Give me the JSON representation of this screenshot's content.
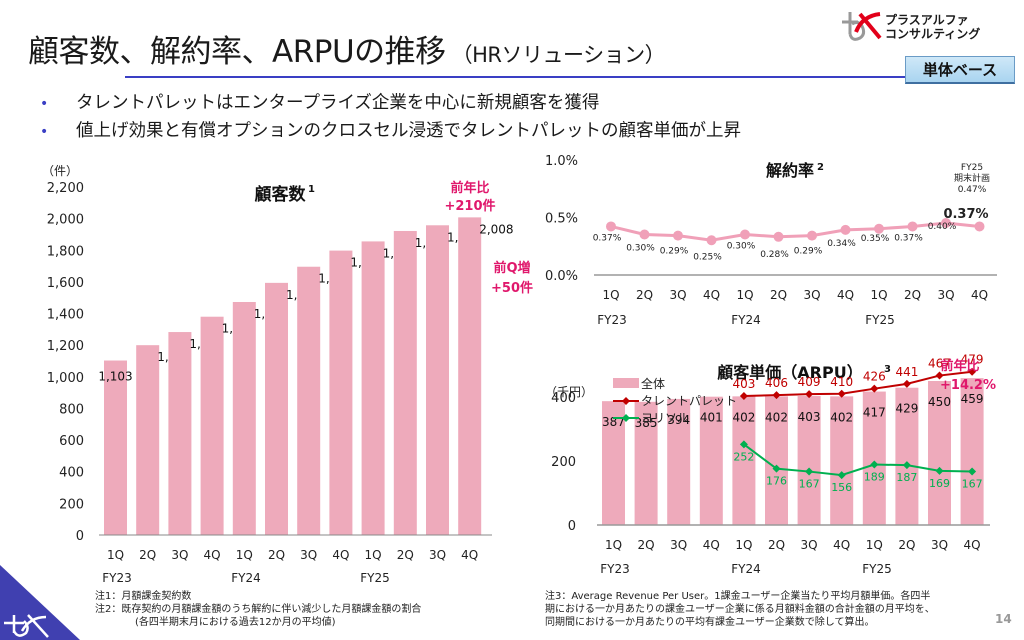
{
  "header": {
    "title": "顧客数、解約率、ARPUの推移",
    "subtitle": "（HRソリューション）",
    "logo_line1": "プラスアルファ",
    "logo_line2": "コンサルティング",
    "badge": "単体ベース"
  },
  "bullets": [
    "タレントパレットはエンタープライズ企業を中心に新規顧客を獲得",
    "値上げ効果と有償オプションのクロスセル浸透でタレントパレットの顧客単価が上昇"
  ],
  "colors": {
    "bar_pink": "#eeaabb",
    "churn_line": "#f0a0b8",
    "talent_palette": "#c00000",
    "yorisol": "#00b050",
    "accent_magenta": "#e0186c",
    "rule_blue": "#3a3fc4"
  },
  "chart_data": [
    {
      "id": "customers",
      "type": "bar",
      "title": "顧客数",
      "title_sup": "1",
      "unit_label": "（件）",
      "categories": [
        "1Q",
        "2Q",
        "3Q",
        "4Q",
        "1Q",
        "2Q",
        "3Q",
        "4Q",
        "1Q",
        "2Q",
        "3Q",
        "4Q"
      ],
      "fiscal_years": [
        "FY23",
        "FY24",
        "FY25"
      ],
      "values": [
        1103,
        1200,
        1283,
        1380,
        1473,
        1594,
        1696,
        1798,
        1856,
        1922,
        1958,
        2008
      ],
      "value_labels": [
        "1,103",
        "1,200",
        "1,283",
        "1,380",
        "1,473",
        "1,594",
        "1,696",
        "1,798",
        "1,856",
        "1,922",
        "1,958",
        "2,008"
      ],
      "ylim": [
        0,
        2200
      ],
      "yticks": [
        0,
        200,
        400,
        600,
        800,
        1000,
        1200,
        1400,
        1600,
        1800,
        2000,
        2200
      ],
      "ytick_labels": [
        "0",
        "200",
        "400",
        "600",
        "800",
        "1,000",
        "1,200",
        "1,400",
        "1,600",
        "1,800",
        "2,000",
        "2,200"
      ],
      "annotations": [
        {
          "text_line1": "前年比",
          "text_line2": "+210件"
        },
        {
          "text_line1": "前Q増",
          "text_line2": "+50件"
        }
      ],
      "grid": false
    },
    {
      "id": "churn",
      "type": "line",
      "title": "解約率",
      "title_sup": "2",
      "categories": [
        "1Q",
        "2Q",
        "3Q",
        "4Q",
        "1Q",
        "2Q",
        "3Q",
        "4Q",
        "1Q",
        "2Q",
        "3Q",
        "4Q"
      ],
      "fiscal_years": [
        "FY23",
        "FY24",
        "FY25"
      ],
      "values": [
        0.37,
        0.3,
        0.29,
        0.25,
        0.3,
        0.28,
        0.29,
        0.34,
        0.35,
        0.37,
        0.4,
        0.37
      ],
      "value_labels": [
        "0.37%",
        "0.30%",
        "0.29%",
        "0.25%",
        "0.30%",
        "0.28%",
        "0.29%",
        "0.34%",
        "0.35%",
        "0.37%",
        "0.40%",
        "0.37%"
      ],
      "ylim": [
        0,
        1.0
      ],
      "yticks": [
        0,
        0.5,
        1.0
      ],
      "ytick_labels": [
        "0.0%",
        "0.5%",
        "1.0%"
      ],
      "plan": {
        "line1": "FY25",
        "line2": "期末計画",
        "line3": "0.47%"
      },
      "latest_label": "0.37%",
      "grid": false
    },
    {
      "id": "arpu",
      "type": "bar",
      "title": "顧客単価（ARPU）",
      "title_sup": "3",
      "unit_label": "（千円）",
      "categories": [
        "1Q",
        "2Q",
        "3Q",
        "4Q",
        "1Q",
        "2Q",
        "3Q",
        "4Q",
        "1Q",
        "2Q",
        "3Q",
        "4Q"
      ],
      "fiscal_years": [
        "FY23",
        "FY24",
        "FY25"
      ],
      "ylim": [
        0,
        500
      ],
      "yticks": [
        0,
        200,
        400
      ],
      "ytick_labels": [
        "0",
        "200",
        "400"
      ],
      "series": [
        {
          "name": "全体",
          "kind": "bar",
          "values": [
            387,
            385,
            394,
            401,
            402,
            402,
            403,
            402,
            417,
            429,
            450,
            459
          ]
        },
        {
          "name": "タレントパレット",
          "kind": "line",
          "values": [
            null,
            null,
            null,
            null,
            403,
            406,
            409,
            410,
            426,
            441,
            467,
            479
          ]
        },
        {
          "name": "ヨリソル",
          "kind": "line",
          "values": [
            null,
            null,
            null,
            null,
            252,
            176,
            167,
            156,
            189,
            187,
            169,
            167
          ]
        }
      ],
      "annotation": {
        "text_line1": "前年比",
        "text_line2": "+14.2%"
      },
      "legend": "top-left",
      "grid": false
    }
  ],
  "notes": {
    "left": [
      "注1：月額課金契約数",
      "注2：既存契約の月額課金額のうち解約に伴い減少した月額課金額の割合",
      "　　　　(各四半期末月における過去12か月の平均値)"
    ],
    "right": [
      "注3：Average Revenue Per User。1課金ユーザー企業当たり平均月額単価。各四半",
      "期における一か月あたりの課金ユーザー企業に係る月額料金額の合計金額の月平均を、",
      "同期間における一か月あたりの平均有課金ユーザー企業数で除して算出。"
    ]
  },
  "page_number": "14"
}
